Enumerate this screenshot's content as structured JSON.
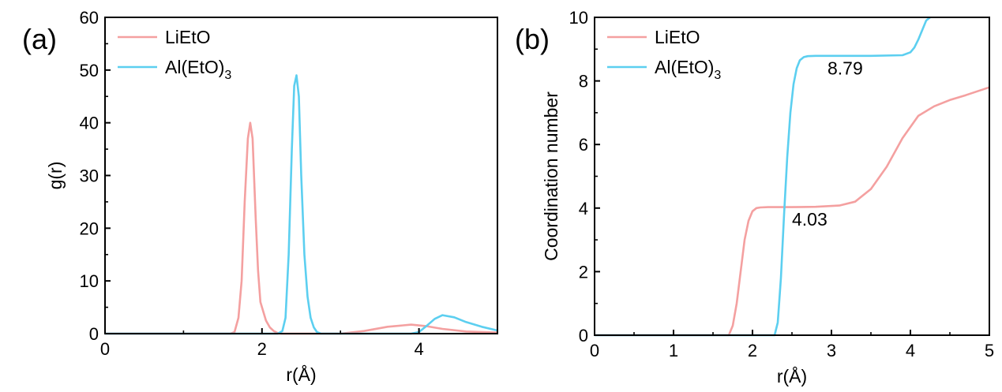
{
  "chart_data": [
    {
      "type": "line",
      "panel_label": "(a)",
      "xlabel": "r(Å)",
      "ylabel": "g(r)",
      "xlim": [
        0,
        5
      ],
      "ylim": [
        0,
        60
      ],
      "xticks": [
        "0",
        "2",
        "4"
      ],
      "yticks": [
        "0",
        "10",
        "20",
        "30",
        "40",
        "50",
        "60"
      ],
      "legend": {
        "placement": "top-left",
        "entries": [
          {
            "label": "LiEtO",
            "color": "#f4a0a0"
          },
          {
            "label": "Al(EtO)",
            "sub": "3",
            "color": "#5ccff0"
          }
        ]
      },
      "grid": false,
      "series": [
        {
          "name": "LiEtO",
          "color": "#f4a0a0",
          "x": [
            0,
            1.6,
            1.65,
            1.7,
            1.74,
            1.78,
            1.82,
            1.85,
            1.88,
            1.92,
            1.95,
            1.98,
            2.0,
            2.05,
            2.1,
            2.15,
            2.2,
            2.25,
            2.35,
            2.6,
            3.0,
            3.3,
            3.6,
            3.9,
            4.1,
            4.3,
            4.6,
            5.0
          ],
          "y": [
            0,
            0,
            0.3,
            3,
            10,
            25,
            37,
            40,
            37,
            22,
            12,
            6,
            5,
            2.5,
            1.2,
            0.5,
            0.1,
            0,
            0,
            0,
            0,
            0.5,
            1.3,
            1.7,
            1.4,
            0.9,
            0.4,
            0.2
          ]
        },
        {
          "name": "Al(EtO)3",
          "color": "#5ccff0",
          "x": [
            0,
            2.2,
            2.26,
            2.3,
            2.34,
            2.38,
            2.41,
            2.44,
            2.47,
            2.5,
            2.54,
            2.58,
            2.62,
            2.66,
            2.7,
            2.75,
            2.8,
            3.0,
            3.5,
            3.9,
            4.0,
            4.1,
            4.2,
            4.3,
            4.45,
            4.6,
            4.8,
            5.0
          ],
          "y": [
            0,
            0,
            0.5,
            3,
            15,
            35,
            47,
            49,
            45,
            30,
            15,
            7,
            3,
            1.2,
            0.3,
            0,
            0,
            0,
            0,
            0,
            0.3,
            1.5,
            2.8,
            3.5,
            3.1,
            2.2,
            1.3,
            0.6
          ]
        }
      ]
    },
    {
      "type": "line",
      "panel_label": "(b)",
      "xlabel": "r(Å)",
      "ylabel": "Coordination number",
      "xlim": [
        0,
        5
      ],
      "ylim": [
        0,
        10
      ],
      "xticks": [
        "0",
        "1",
        "2",
        "3",
        "4",
        "5"
      ],
      "yticks": [
        "0",
        "2",
        "4",
        "6",
        "8",
        "10"
      ],
      "legend": {
        "placement": "top-left",
        "entries": [
          {
            "label": "LiEtO",
            "color": "#f4a0a0"
          },
          {
            "label": "Al(EtO)",
            "sub": "3",
            "color": "#5ccff0"
          }
        ]
      },
      "grid": false,
      "annotations": [
        {
          "text": "8.79",
          "x": 2.95,
          "y": 8.2
        },
        {
          "text": "4.03",
          "x": 2.5,
          "y": 3.45
        }
      ],
      "series": [
        {
          "name": "LiEtO",
          "color": "#f4a0a0",
          "x": [
            0,
            1.7,
            1.75,
            1.8,
            1.85,
            1.9,
            1.95,
            2.0,
            2.05,
            2.1,
            2.2,
            2.5,
            2.8,
            3.1,
            3.3,
            3.5,
            3.7,
            3.9,
            4.1,
            4.3,
            4.5,
            4.7,
            5.0
          ],
          "y": [
            0,
            0,
            0.3,
            1.0,
            2.0,
            3.0,
            3.6,
            3.9,
            4.0,
            4.02,
            4.03,
            4.03,
            4.04,
            4.08,
            4.2,
            4.6,
            5.3,
            6.2,
            6.9,
            7.2,
            7.4,
            7.55,
            7.8
          ]
        },
        {
          "name": "Al(EtO)3",
          "color": "#5ccff0",
          "x": [
            0,
            2.28,
            2.32,
            2.36,
            2.4,
            2.44,
            2.48,
            2.52,
            2.56,
            2.6,
            2.65,
            2.7,
            2.8,
            3.0,
            3.5,
            3.9,
            4.0,
            4.05,
            4.1,
            4.15,
            4.2,
            4.25
          ],
          "y": [
            0,
            0,
            0.4,
            1.8,
            3.8,
            5.6,
            7.0,
            7.9,
            8.4,
            8.65,
            8.75,
            8.78,
            8.79,
            8.79,
            8.79,
            8.81,
            8.9,
            9.05,
            9.3,
            9.6,
            9.9,
            10.0
          ]
        }
      ]
    }
  ]
}
